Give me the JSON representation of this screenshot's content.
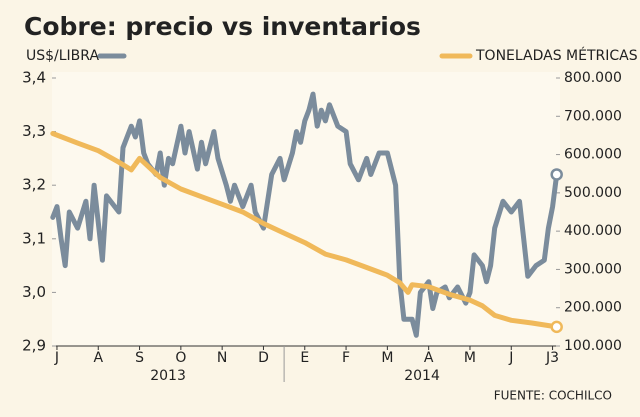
{
  "chart_data": {
    "type": "line",
    "title": "Cobre: precio vs inventarios",
    "source": "FUENTE: COCHILCO",
    "year_labels": [
      "2013",
      "2014"
    ],
    "xlim": [
      -0.12,
      12.18
    ],
    "xticks": [
      {
        "value": 0,
        "label": "J"
      },
      {
        "value": 1,
        "label": "A"
      },
      {
        "value": 2,
        "label": "S"
      },
      {
        "value": 3,
        "label": "O"
      },
      {
        "value": 4,
        "label": "N"
      },
      {
        "value": 5,
        "label": "D"
      },
      {
        "value": 6,
        "label": "E"
      },
      {
        "value": 7,
        "label": "F"
      },
      {
        "value": 8,
        "label": "M"
      },
      {
        "value": 9,
        "label": "A"
      },
      {
        "value": 10,
        "label": "M"
      },
      {
        "value": 11,
        "label": "J"
      },
      {
        "value": 12,
        "label": "J3"
      }
    ],
    "ylim": [
      2.9,
      3.4
    ],
    "yticks": [
      {
        "value": 2.9,
        "label": "2,9"
      },
      {
        "value": 3.0,
        "label": "3,0"
      },
      {
        "value": 3.1,
        "label": "3,1"
      },
      {
        "value": 3.2,
        "label": "3,2"
      },
      {
        "value": 3.3,
        "label": "3,3"
      },
      {
        "value": 3.4,
        "label": "3,4"
      }
    ],
    "y2lim": [
      100000,
      800000
    ],
    "y2ticks": [
      {
        "value": 100000,
        "label": "100.000"
      },
      {
        "value": 200000,
        "label": "200.000"
      },
      {
        "value": 300000,
        "label": "300.000"
      },
      {
        "value": 400000,
        "label": "400.000"
      },
      {
        "value": 500000,
        "label": "500.000"
      },
      {
        "value": 600000,
        "label": "600.000"
      },
      {
        "value": 700000,
        "label": "700.000"
      },
      {
        "value": 800000,
        "label": "800.000"
      }
    ],
    "series": [
      {
        "name": "US$/LIBRA",
        "color": "#7b8c9c",
        "axis": "y",
        "x": [
          -0.1,
          0,
          0.1,
          0.2,
          0.3,
          0.5,
          0.7,
          0.8,
          0.9,
          1.0,
          1.1,
          1.2,
          1.3,
          1.5,
          1.6,
          1.8,
          1.9,
          2.0,
          2.1,
          2.2,
          2.4,
          2.5,
          2.6,
          2.7,
          2.8,
          3.0,
          3.1,
          3.2,
          3.4,
          3.5,
          3.6,
          3.8,
          3.9,
          4.1,
          4.2,
          4.3,
          4.5,
          4.7,
          4.8,
          5.0,
          5.2,
          5.4,
          5.5,
          5.7,
          5.8,
          5.9,
          6.0,
          6.1,
          6.2,
          6.3,
          6.4,
          6.5,
          6.6,
          6.8,
          7.0,
          7.1,
          7.3,
          7.5,
          7.6,
          7.8,
          8.0,
          8.2,
          8.3,
          8.4,
          8.6,
          8.7,
          8.8,
          9.0,
          9.1,
          9.2,
          9.4,
          9.5,
          9.7,
          9.9,
          10.0,
          10.1,
          10.3,
          10.4,
          10.5,
          10.6,
          10.8,
          11.0,
          11.2,
          11.3,
          11.4,
          11.6,
          11.8,
          11.9,
          12.0,
          12.1
        ],
        "values": [
          3.14,
          3.16,
          3.1,
          3.05,
          3.15,
          3.12,
          3.17,
          3.1,
          3.2,
          3.13,
          3.06,
          3.18,
          3.17,
          3.15,
          3.27,
          3.31,
          3.29,
          3.32,
          3.26,
          3.24,
          3.22,
          3.26,
          3.2,
          3.25,
          3.24,
          3.31,
          3.26,
          3.3,
          3.23,
          3.28,
          3.24,
          3.3,
          3.25,
          3.2,
          3.17,
          3.2,
          3.16,
          3.2,
          3.15,
          3.12,
          3.22,
          3.25,
          3.21,
          3.26,
          3.3,
          3.28,
          3.32,
          3.34,
          3.37,
          3.31,
          3.34,
          3.32,
          3.35,
          3.31,
          3.3,
          3.24,
          3.21,
          3.25,
          3.22,
          3.26,
          3.26,
          3.2,
          3.02,
          2.95,
          2.95,
          2.92,
          3.0,
          3.02,
          2.97,
          3.0,
          3.01,
          2.99,
          3.01,
          2.98,
          3.0,
          3.07,
          3.05,
          3.02,
          3.05,
          3.12,
          3.17,
          3.15,
          3.17,
          3.1,
          3.03,
          3.05,
          3.06,
          3.12,
          3.16,
          3.22
        ]
      },
      {
        "name": "TONELADAS MÉTRICAS",
        "color": "#f0b95a",
        "axis": "y2",
        "x": [
          -0.1,
          0.5,
          1.0,
          1.5,
          1.8,
          2.0,
          2.2,
          2.5,
          3.0,
          3.5,
          4.0,
          4.5,
          5.0,
          5.5,
          6.0,
          6.5,
          7.0,
          7.5,
          8.0,
          8.3,
          8.5,
          8.6,
          9.0,
          9.5,
          10.0,
          10.3,
          10.6,
          11.0,
          11.5,
          12.1
        ],
        "values": [
          655000,
          630000,
          610000,
          580000,
          560000,
          590000,
          570000,
          540000,
          510000,
          490000,
          470000,
          450000,
          420000,
          395000,
          370000,
          340000,
          325000,
          305000,
          285000,
          265000,
          240000,
          260000,
          255000,
          235000,
          220000,
          205000,
          180000,
          167000,
          160000,
          150000
        ]
      }
    ]
  }
}
